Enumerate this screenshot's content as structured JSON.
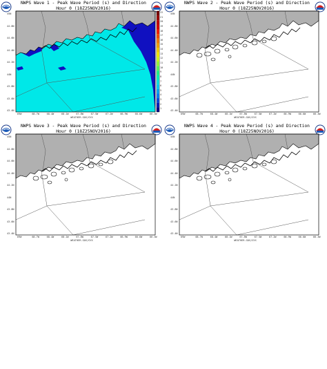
{
  "colors": {
    "land": "#b0b0b0",
    "sea_wave1": "#00e8e8",
    "wave1_deep": "#1010c0",
    "frame": "#000000",
    "state_lines": "#555555"
  },
  "icons": [
    "noaa-logo-icon",
    "nws-logo-icon"
  ],
  "panels": [
    {
      "title_line1": "NWPS Wave 1 - Peak Wave Period (s) and Direction",
      "title_line2": "Hour 0 (18Z25NOV2016)",
      "footer": "WEATHER.GOV/GYX",
      "has_fill": true
    },
    {
      "title_line1": "NWPS Wave 2 - Peak Wave Period (s) and Direction",
      "title_line2": "Hour 0 (18Z25NOV2016)",
      "footer": "WEATHER.GOV/GYX",
      "has_fill": false
    },
    {
      "title_line1": "NWPS Wave 3 - Peak Wave Period (s) and Direction",
      "title_line2": "Hour 0 (18Z25NOV2016)",
      "footer": "WEATHER.GOV/GYX",
      "has_fill": false
    },
    {
      "title_line1": "NWPS Wave 4 - Peak Wave Period (s) and Direction",
      "title_line2": "Hour 0 (18Z25NOV2016)",
      "footer": "WEATHER.GOV/GYX",
      "has_fill": false
    }
  ],
  "axis": {
    "lon_ticks": [
      "69W",
      "68.7W",
      "68.4W",
      "68.1W",
      "67.8W",
      "67.5W",
      "67.2W",
      "66.9W",
      "66.6W",
      "66.3W"
    ],
    "lat_ticks": [
      "45N",
      "44.8N",
      "44.6N",
      "44.4N",
      "44.2N",
      "44N",
      "43.8N",
      "43.6N",
      "43.4N"
    ]
  },
  "colorbar": {
    "labels": [
      "22",
      "21",
      "20",
      "19",
      "18",
      "17",
      "16",
      "15",
      "14",
      "13",
      "12",
      "11",
      "10",
      "9",
      "8",
      "7",
      "6",
      "5",
      "4",
      "3",
      "2",
      "1"
    ],
    "colors": [
      "#7a0000",
      "#a00000",
      "#c80000",
      "#e00000",
      "#ff2000",
      "#ff5000",
      "#ff8000",
      "#ffa800",
      "#ffd000",
      "#fff000",
      "#d8ff20",
      "#a0ff40",
      "#60ff60",
      "#20ff90",
      "#00ffc0",
      "#00f0e8",
      "#00d8ff",
      "#00b0ff",
      "#0088ff",
      "#0050e8",
      "#0020c0",
      "#000090"
    ]
  }
}
